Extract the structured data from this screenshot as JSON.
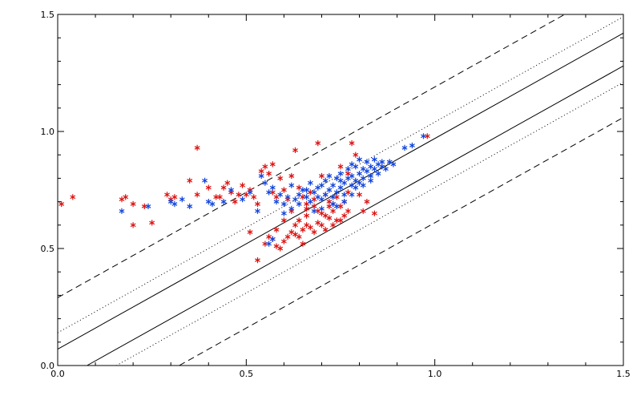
{
  "chart_data": {
    "type": "scatter",
    "title": "",
    "xlabel": "",
    "ylabel": "",
    "xlim": [
      0.0,
      1.5
    ],
    "ylim": [
      0.0,
      1.5
    ],
    "xticks": [
      "0.0",
      "0.5",
      "1.0",
      "1.5"
    ],
    "yticks": [
      "0.0",
      "0.5",
      "1.0",
      "1.5"
    ],
    "grid": false,
    "legend": "none",
    "marker": "asterisk",
    "colors": {
      "series_red": "#dd1111",
      "series_blue": "#1144dd",
      "axes": "#000000"
    },
    "series": [
      {
        "color": "series_red",
        "points": [
          [
            0.01,
            0.69
          ],
          [
            0.04,
            0.72
          ],
          [
            0.17,
            0.71
          ],
          [
            0.18,
            0.72
          ],
          [
            0.2,
            0.69
          ],
          [
            0.2,
            0.6
          ],
          [
            0.23,
            0.68
          ],
          [
            0.25,
            0.61
          ],
          [
            0.29,
            0.73
          ],
          [
            0.3,
            0.71
          ],
          [
            0.31,
            0.72
          ],
          [
            0.37,
            0.93
          ],
          [
            0.35,
            0.79
          ],
          [
            0.37,
            0.73
          ],
          [
            0.4,
            0.76
          ],
          [
            0.42,
            0.72
          ],
          [
            0.43,
            0.72
          ],
          [
            0.44,
            0.76
          ],
          [
            0.45,
            0.78
          ],
          [
            0.46,
            0.74
          ],
          [
            0.47,
            0.7
          ],
          [
            0.48,
            0.73
          ],
          [
            0.49,
            0.77
          ],
          [
            0.5,
            0.73
          ],
          [
            0.51,
            0.75
          ],
          [
            0.52,
            0.72
          ],
          [
            0.53,
            0.69
          ],
          [
            0.54,
            0.83
          ],
          [
            0.55,
            0.85
          ],
          [
            0.56,
            0.82
          ],
          [
            0.57,
            0.86
          ],
          [
            0.57,
            0.74
          ],
          [
            0.58,
            0.72
          ],
          [
            0.59,
            0.8
          ],
          [
            0.6,
            0.75
          ],
          [
            0.61,
            0.71
          ],
          [
            0.62,
            0.81
          ],
          [
            0.63,
            0.92
          ],
          [
            0.64,
            0.76
          ],
          [
            0.65,
            0.72
          ],
          [
            0.66,
            0.69
          ],
          [
            0.67,
            0.74
          ],
          [
            0.68,
            0.71
          ],
          [
            0.69,
            0.95
          ],
          [
            0.7,
            0.81
          ],
          [
            0.71,
            0.73
          ],
          [
            0.72,
            0.7
          ],
          [
            0.73,
            0.69
          ],
          [
            0.74,
            0.72
          ],
          [
            0.75,
            0.68
          ],
          [
            0.76,
            0.7
          ],
          [
            0.77,
            0.74
          ],
          [
            0.78,
            0.95
          ],
          [
            0.79,
            0.9
          ],
          [
            0.8,
            0.73
          ],
          [
            0.81,
            0.66
          ],
          [
            0.82,
            0.7
          ],
          [
            0.84,
            0.65
          ],
          [
            0.75,
            0.85
          ],
          [
            0.77,
            0.82
          ],
          [
            0.51,
            0.57
          ],
          [
            0.53,
            0.45
          ],
          [
            0.55,
            0.52
          ],
          [
            0.56,
            0.55
          ],
          [
            0.57,
            0.54
          ],
          [
            0.58,
            0.51
          ],
          [
            0.59,
            0.5
          ],
          [
            0.6,
            0.53
          ],
          [
            0.61,
            0.55
          ],
          [
            0.62,
            0.57
          ],
          [
            0.63,
            0.56
          ],
          [
            0.64,
            0.55
          ],
          [
            0.65,
            0.58
          ],
          [
            0.66,
            0.6
          ],
          [
            0.67,
            0.59
          ],
          [
            0.68,
            0.57
          ],
          [
            0.69,
            0.61
          ],
          [
            0.7,
            0.6
          ],
          [
            0.71,
            0.64
          ],
          [
            0.72,
            0.63
          ],
          [
            0.73,
            0.66
          ],
          [
            0.74,
            0.62
          ],
          [
            0.62,
            0.66
          ],
          [
            0.64,
            0.62
          ],
          [
            0.66,
            0.64
          ],
          [
            0.68,
            0.68
          ],
          [
            0.7,
            0.65
          ],
          [
            0.72,
            0.68
          ],
          [
            0.75,
            0.62
          ],
          [
            0.76,
            0.64
          ],
          [
            0.63,
            0.6
          ],
          [
            0.65,
            0.52
          ],
          [
            0.66,
            0.67
          ],
          [
            0.69,
            0.66
          ],
          [
            0.71,
            0.58
          ],
          [
            0.6,
            0.62
          ],
          [
            0.58,
            0.58
          ],
          [
            0.77,
            0.66
          ],
          [
            0.73,
            0.6
          ],
          [
            0.98,
            0.98
          ]
        ]
      },
      {
        "color": "series_blue",
        "points": [
          [
            0.17,
            0.66
          ],
          [
            0.24,
            0.68
          ],
          [
            0.3,
            0.7
          ],
          [
            0.31,
            0.69
          ],
          [
            0.33,
            0.71
          ],
          [
            0.35,
            0.68
          ],
          [
            0.39,
            0.79
          ],
          [
            0.4,
            0.7
          ],
          [
            0.41,
            0.69
          ],
          [
            0.44,
            0.7
          ],
          [
            0.46,
            0.75
          ],
          [
            0.49,
            0.71
          ],
          [
            0.51,
            0.74
          ],
          [
            0.53,
            0.66
          ],
          [
            0.54,
            0.81
          ],
          [
            0.55,
            0.78
          ],
          [
            0.56,
            0.74
          ],
          [
            0.57,
            0.76
          ],
          [
            0.58,
            0.7
          ],
          [
            0.59,
            0.73
          ],
          [
            0.6,
            0.69
          ],
          [
            0.61,
            0.72
          ],
          [
            0.62,
            0.77
          ],
          [
            0.63,
            0.71
          ],
          [
            0.64,
            0.73
          ],
          [
            0.65,
            0.75
          ],
          [
            0.66,
            0.72
          ],
          [
            0.67,
            0.78
          ],
          [
            0.68,
            0.74
          ],
          [
            0.69,
            0.76
          ],
          [
            0.7,
            0.71
          ],
          [
            0.7,
            0.77
          ],
          [
            0.71,
            0.73
          ],
          [
            0.71,
            0.79
          ],
          [
            0.72,
            0.75
          ],
          [
            0.72,
            0.81
          ],
          [
            0.73,
            0.72
          ],
          [
            0.73,
            0.77
          ],
          [
            0.74,
            0.74
          ],
          [
            0.74,
            0.8
          ],
          [
            0.75,
            0.76
          ],
          [
            0.75,
            0.82
          ],
          [
            0.76,
            0.73
          ],
          [
            0.76,
            0.78
          ],
          [
            0.77,
            0.8
          ],
          [
            0.77,
            0.84
          ],
          [
            0.78,
            0.77
          ],
          [
            0.78,
            0.81
          ],
          [
            0.79,
            0.79
          ],
          [
            0.79,
            0.85
          ],
          [
            0.8,
            0.82
          ],
          [
            0.8,
            0.78
          ],
          [
            0.81,
            0.84
          ],
          [
            0.81,
            0.8
          ],
          [
            0.82,
            0.83
          ],
          [
            0.82,
            0.87
          ],
          [
            0.83,
            0.81
          ],
          [
            0.83,
            0.85
          ],
          [
            0.84,
            0.84
          ],
          [
            0.84,
            0.88
          ],
          [
            0.85,
            0.82
          ],
          [
            0.85,
            0.86
          ],
          [
            0.86,
            0.85
          ],
          [
            0.86,
            0.87
          ],
          [
            0.87,
            0.84
          ],
          [
            0.88,
            0.87
          ],
          [
            0.89,
            0.86
          ],
          [
            0.92,
            0.93
          ],
          [
            0.94,
            0.94
          ],
          [
            0.97,
            0.98
          ],
          [
            0.57,
            0.54
          ],
          [
            0.56,
            0.52
          ],
          [
            0.68,
            0.66
          ],
          [
            0.7,
            0.67
          ],
          [
            0.73,
            0.69
          ],
          [
            0.74,
            0.68
          ],
          [
            0.76,
            0.7
          ],
          [
            0.78,
            0.73
          ],
          [
            0.79,
            0.76
          ],
          [
            0.81,
            0.77
          ],
          [
            0.67,
            0.7
          ],
          [
            0.69,
            0.72
          ],
          [
            0.66,
            0.75
          ],
          [
            0.64,
            0.69
          ],
          [
            0.62,
            0.67
          ],
          [
            0.6,
            0.65
          ],
          [
            0.83,
            0.79
          ],
          [
            0.78,
            0.86
          ],
          [
            0.8,
            0.88
          ],
          [
            0.75,
            0.79
          ]
        ]
      }
    ],
    "reference_lines": [
      {
        "style": "solid",
        "slope": 0.9,
        "intercept": 0.07
      },
      {
        "style": "solid",
        "slope": 0.9,
        "intercept": 0.07,
        "shift": -0.14
      },
      {
        "style": "dotted",
        "slope": 0.9,
        "intercept": 0.07,
        "shift": 0.07
      },
      {
        "style": "dotted",
        "slope": 0.9,
        "intercept": 0.07,
        "shift": -0.21
      },
      {
        "style": "dashed",
        "slope": 0.9,
        "intercept": 0.07,
        "shift": 0.22
      },
      {
        "style": "dashed",
        "slope": 0.9,
        "intercept": 0.07,
        "shift": -0.36
      }
    ]
  }
}
